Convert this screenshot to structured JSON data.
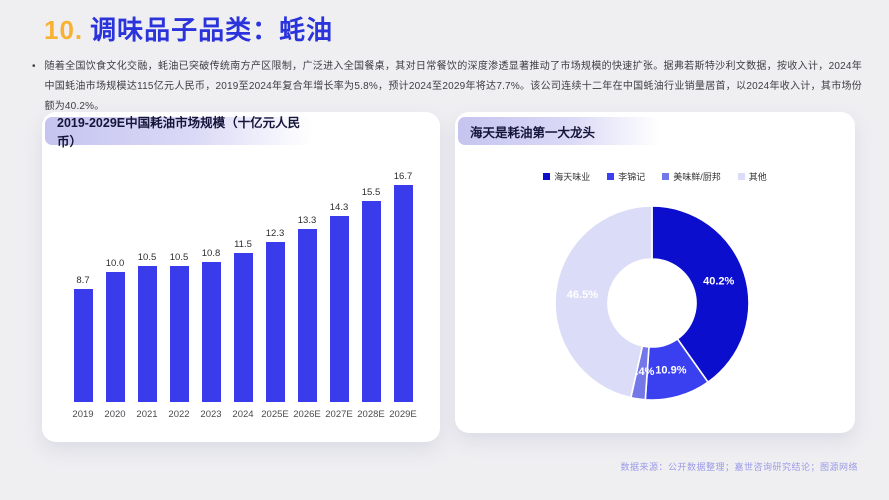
{
  "header": {
    "number": "10.",
    "title": "调味品子品类：蚝油"
  },
  "intro": {
    "marker": "•",
    "text": "随着全国饮食文化交融，蚝油已突破传统南方产区限制，广泛进入全国餐桌，其对日常餐饮的深度渗透显著推动了市场规模的快速扩张。据弗若斯特沙利文数据，按收入计，2024年中国蚝油市场规模达115亿元人民币，2019至2024年复合年增长率为5.8%，预计2024至2029年将达7.7%。该公司连续十二年在中国蚝油行业销量居首，以2024年收入计，其市场份额为40.2%。"
  },
  "footer_text": "数据来源：公开数据整理；嘉世咨询研究结论；图源网络",
  "colors": {
    "page_bg": "#EFEFF2",
    "accent_orange": "#F8B133",
    "title_blue": "#2B34DB",
    "bar_blue": "#3A3CEC",
    "pill_purple": "#C5C4F0",
    "footer_purple": "#9B9AE8"
  },
  "chart_data": [
    {
      "type": "bar",
      "title": "2019-2029E中国耗油市场规模（十亿元人民币）",
      "categories": [
        "2019",
        "2020",
        "2021",
        "2022",
        "2023",
        "2024",
        "2025E",
        "2026E",
        "2027E",
        "2028E",
        "2029E"
      ],
      "values": [
        8.7,
        10.0,
        10.5,
        10.5,
        10.8,
        11.5,
        12.3,
        13.3,
        14.3,
        15.5,
        16.7
      ],
      "bar_color": "#3A3CEC",
      "value_labels": true,
      "xlabel": "",
      "ylabel": "十亿元人民币",
      "ylim": [
        0,
        18
      ],
      "grid": false
    },
    {
      "type": "pie",
      "donut": true,
      "title": "海天是耗油第一大龙头",
      "labels": [
        "海天味业",
        "李锦记",
        "美味鲜/厨邦",
        "其他"
      ],
      "values": [
        40.2,
        10.9,
        2.4,
        46.5
      ],
      "colors": [
        "#0C0ECE",
        "#3A3FF0",
        "#7477E8",
        "#DBDCF7"
      ],
      "label_color": "#FFFFFF",
      "legend_position": "top",
      "start_angle_deg": 0,
      "direction": "clockwise"
    }
  ]
}
